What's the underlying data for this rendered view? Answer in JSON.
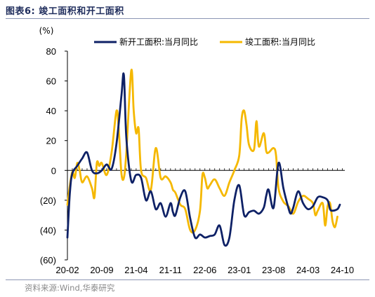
{
  "figure": {
    "title": "图表6:  竣工面积和开工面积",
    "source": "资料来源:Wind,华泰研究"
  },
  "colors": {
    "new_start": "#0e2166",
    "completion": "#f5b800"
  },
  "chart_data": {
    "type": "line",
    "title": "",
    "xlabel": "",
    "ylabel": "(%)",
    "ylim": [
      -60,
      80
    ],
    "yticks": [
      80,
      60,
      40,
      20,
      0,
      -20,
      -40,
      -60
    ],
    "ytick_labels": [
      "80",
      "60",
      "40",
      "20",
      "0",
      "(20)",
      "(40)",
      "(60)"
    ],
    "xticks": [
      "20-02",
      "20-09",
      "21-04",
      "21-11",
      "22-06",
      "23-01",
      "23-08",
      "24-03",
      "24-10"
    ],
    "x_tick_positions": [
      0,
      7,
      14,
      21,
      28,
      35,
      42,
      49,
      56
    ],
    "grid": false,
    "legend_position": "top",
    "series": [
      {
        "name": "新开工面积:当月同比",
        "color": "#0e2166",
        "points": [
          [
            0,
            -45
          ],
          [
            0.5,
            -15
          ],
          [
            1,
            -2
          ],
          [
            2,
            3
          ],
          [
            3,
            8
          ],
          [
            4,
            12
          ],
          [
            5,
            0
          ],
          [
            6,
            -2
          ],
          [
            7,
            0
          ],
          [
            8,
            4
          ],
          [
            9,
            1
          ],
          [
            10,
            18
          ],
          [
            11,
            50
          ],
          [
            11.5,
            64
          ],
          [
            12,
            22
          ],
          [
            13,
            -7
          ],
          [
            14,
            -3
          ],
          [
            15,
            -5
          ],
          [
            16,
            -20
          ],
          [
            17,
            -14
          ],
          [
            18,
            -26
          ],
          [
            19,
            -22
          ],
          [
            20,
            -31
          ],
          [
            21,
            -22
          ],
          [
            21.5,
            -28
          ],
          [
            22,
            -30
          ],
          [
            23,
            -18
          ],
          [
            24,
            -14
          ],
          [
            25,
            -32
          ],
          [
            26,
            -45
          ],
          [
            27,
            -43
          ],
          [
            28,
            -45
          ],
          [
            29,
            -44
          ],
          [
            30,
            -43
          ],
          [
            31,
            -37
          ],
          [
            32,
            -50
          ],
          [
            33,
            -45
          ],
          [
            34,
            -20
          ],
          [
            35,
            -10
          ],
          [
            36,
            -30
          ],
          [
            37,
            -28
          ],
          [
            38,
            -27
          ],
          [
            39,
            -29
          ],
          [
            40,
            -25
          ],
          [
            40.5,
            -17
          ],
          [
            41,
            -13
          ],
          [
            42,
            -25
          ],
          [
            43,
            5
          ],
          [
            44,
            -12
          ],
          [
            45,
            -25
          ],
          [
            45.5,
            -29
          ],
          [
            46,
            -25
          ],
          [
            47,
            -14
          ],
          [
            48,
            -22
          ],
          [
            49,
            -26
          ],
          [
            50,
            -24
          ],
          [
            51,
            -18
          ],
          [
            52,
            -18
          ],
          [
            53,
            -20
          ],
          [
            53.5,
            -26
          ],
          [
            54,
            -27
          ],
          [
            55,
            -26
          ],
          [
            55.5,
            -23
          ]
        ]
      },
      {
        "name": "竣工面积:当月同比",
        "color": "#f5b800",
        "points": [
          [
            0,
            -23
          ],
          [
            0.5,
            -10
          ],
          [
            1,
            -1
          ],
          [
            1.5,
            -5
          ],
          [
            2,
            5
          ],
          [
            2.5,
            0
          ],
          [
            3,
            -8
          ],
          [
            4,
            -4
          ],
          [
            5,
            -12
          ],
          [
            5.5,
            -18
          ],
          [
            6,
            5
          ],
          [
            6.5,
            3
          ],
          [
            7,
            5
          ],
          [
            8,
            -3
          ],
          [
            9,
            12
          ],
          [
            10,
            40
          ],
          [
            10.5,
            25
          ],
          [
            11,
            -2
          ],
          [
            11.5,
            -5
          ],
          [
            12,
            12
          ],
          [
            13,
            67
          ],
          [
            13.5,
            40
          ],
          [
            14,
            25
          ],
          [
            14.5,
            28
          ],
          [
            15,
            0
          ],
          [
            16,
            -5
          ],
          [
            17,
            -13
          ],
          [
            18,
            15
          ],
          [
            19,
            -5
          ],
          [
            20,
            -4
          ],
          [
            21,
            -8
          ],
          [
            21.5,
            -13
          ],
          [
            22,
            -15
          ],
          [
            23,
            -23
          ],
          [
            24,
            -26
          ],
          [
            25,
            -40
          ],
          [
            26,
            -40
          ],
          [
            27,
            -27
          ],
          [
            27.5,
            -3
          ],
          [
            28,
            -5
          ],
          [
            28.5,
            -12
          ],
          [
            29,
            -10
          ],
          [
            30,
            -6
          ],
          [
            31,
            -12
          ],
          [
            32,
            -17
          ],
          [
            33,
            -8
          ],
          [
            34,
            0
          ],
          [
            35,
            10
          ],
          [
            35.5,
            35
          ],
          [
            36,
            40
          ],
          [
            36.5,
            30
          ],
          [
            37,
            17
          ],
          [
            38,
            14
          ],
          [
            38.5,
            33
          ],
          [
            39,
            16
          ],
          [
            40,
            25
          ],
          [
            40.5,
            13
          ],
          [
            41,
            12
          ],
          [
            42,
            15
          ],
          [
            42.5,
            10
          ],
          [
            43,
            -12
          ],
          [
            44,
            -21
          ],
          [
            45,
            -24
          ],
          [
            46,
            -29
          ],
          [
            47,
            -21
          ],
          [
            48,
            -17
          ],
          [
            49,
            -19
          ],
          [
            50,
            -22
          ],
          [
            50.5,
            -30
          ],
          [
            51,
            -27
          ],
          [
            52,
            -22
          ],
          [
            52.5,
            -37
          ],
          [
            53,
            -24
          ],
          [
            53.5,
            -22
          ],
          [
            54,
            -34
          ],
          [
            54.5,
            -38
          ],
          [
            55,
            -31
          ]
        ]
      }
    ]
  }
}
